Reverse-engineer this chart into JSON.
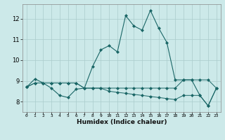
{
  "xlabel": "Humidex (Indice chaleur)",
  "ylabel": "",
  "bg_color": "#cce9e9",
  "grid_color": "#aacccc",
  "line_color": "#1a6666",
  "xlim": [
    -0.5,
    23.5
  ],
  "ylim": [
    7.5,
    12.7
  ],
  "xticks": [
    0,
    1,
    2,
    3,
    4,
    5,
    6,
    7,
    8,
    9,
    10,
    11,
    12,
    13,
    14,
    15,
    16,
    17,
    18,
    19,
    20,
    21,
    22,
    23
  ],
  "yticks": [
    8,
    9,
    10,
    11,
    12
  ],
  "curve1": [
    8.7,
    9.1,
    8.9,
    8.65,
    8.3,
    8.2,
    8.6,
    8.65,
    9.7,
    10.5,
    10.7,
    10.4,
    12.15,
    11.65,
    11.45,
    12.4,
    11.55,
    10.85,
    9.05,
    9.05,
    9.05,
    8.3,
    7.8,
    8.65
  ],
  "curve2": [
    8.7,
    8.9,
    8.9,
    8.9,
    8.9,
    8.9,
    8.9,
    8.65,
    8.65,
    8.65,
    8.65,
    8.65,
    8.65,
    8.65,
    8.65,
    8.65,
    8.65,
    8.65,
    8.65,
    9.05,
    9.05,
    9.05,
    9.05,
    8.65
  ],
  "curve3": [
    8.7,
    8.9,
    8.9,
    8.9,
    8.9,
    8.9,
    8.9,
    8.65,
    8.65,
    8.65,
    8.5,
    8.45,
    8.4,
    8.35,
    8.3,
    8.25,
    8.2,
    8.15,
    8.1,
    8.3,
    8.3,
    8.3,
    7.8,
    8.65
  ],
  "figsize": [
    3.2,
    2.0
  ],
  "dpi": 100
}
